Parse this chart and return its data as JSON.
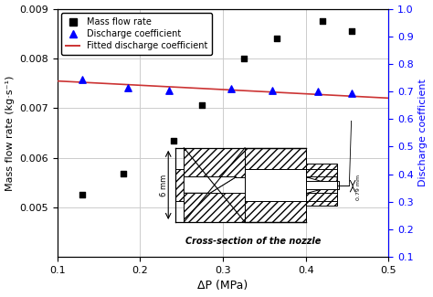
{
  "xlabel": "ΔP (MPa)",
  "ylabel_left": "Mass flow rate (kg·s⁻¹)",
  "ylabel_right": "Discharge coefficient",
  "xlim": [
    0.1,
    0.5
  ],
  "ylim_left": [
    0.004,
    0.009
  ],
  "ylim_right": [
    0.1,
    1.0
  ],
  "mass_flow_x": [
    0.13,
    0.18,
    0.24,
    0.275,
    0.325,
    0.365,
    0.42,
    0.455
  ],
  "mass_flow_y": [
    0.00525,
    0.00568,
    0.00635,
    0.00705,
    0.008,
    0.0084,
    0.00875,
    0.00855
  ],
  "discharge_x": [
    0.13,
    0.185,
    0.235,
    0.31,
    0.36,
    0.415,
    0.455
  ],
  "discharge_y": [
    0.745,
    0.715,
    0.705,
    0.71,
    0.703,
    0.7,
    0.695
  ],
  "fit_x": [
    0.1,
    0.5
  ],
  "fit_y": [
    0.738,
    0.676
  ],
  "mass_flow_color": "black",
  "discharge_color": "blue",
  "fit_color": "#cc3333",
  "grid_color": "#cccccc",
  "background_color": "white",
  "legend_labels": [
    "Mass flow rate",
    "Discharge coefficient",
    "Fitted discharge coefficient"
  ],
  "nozzle_label": "Cross-section of the nozzle",
  "dim_6mm": "6 mm",
  "dim_079mm": "0.79 mm",
  "yticks_left": [
    0.005,
    0.006,
    0.007,
    0.008,
    0.009
  ],
  "xticks": [
    0.1,
    0.2,
    0.3,
    0.4,
    0.5
  ],
  "yticks_right": [
    0.1,
    0.2,
    0.3,
    0.4,
    0.5,
    0.6,
    0.7,
    0.8,
    0.9,
    1.0
  ]
}
